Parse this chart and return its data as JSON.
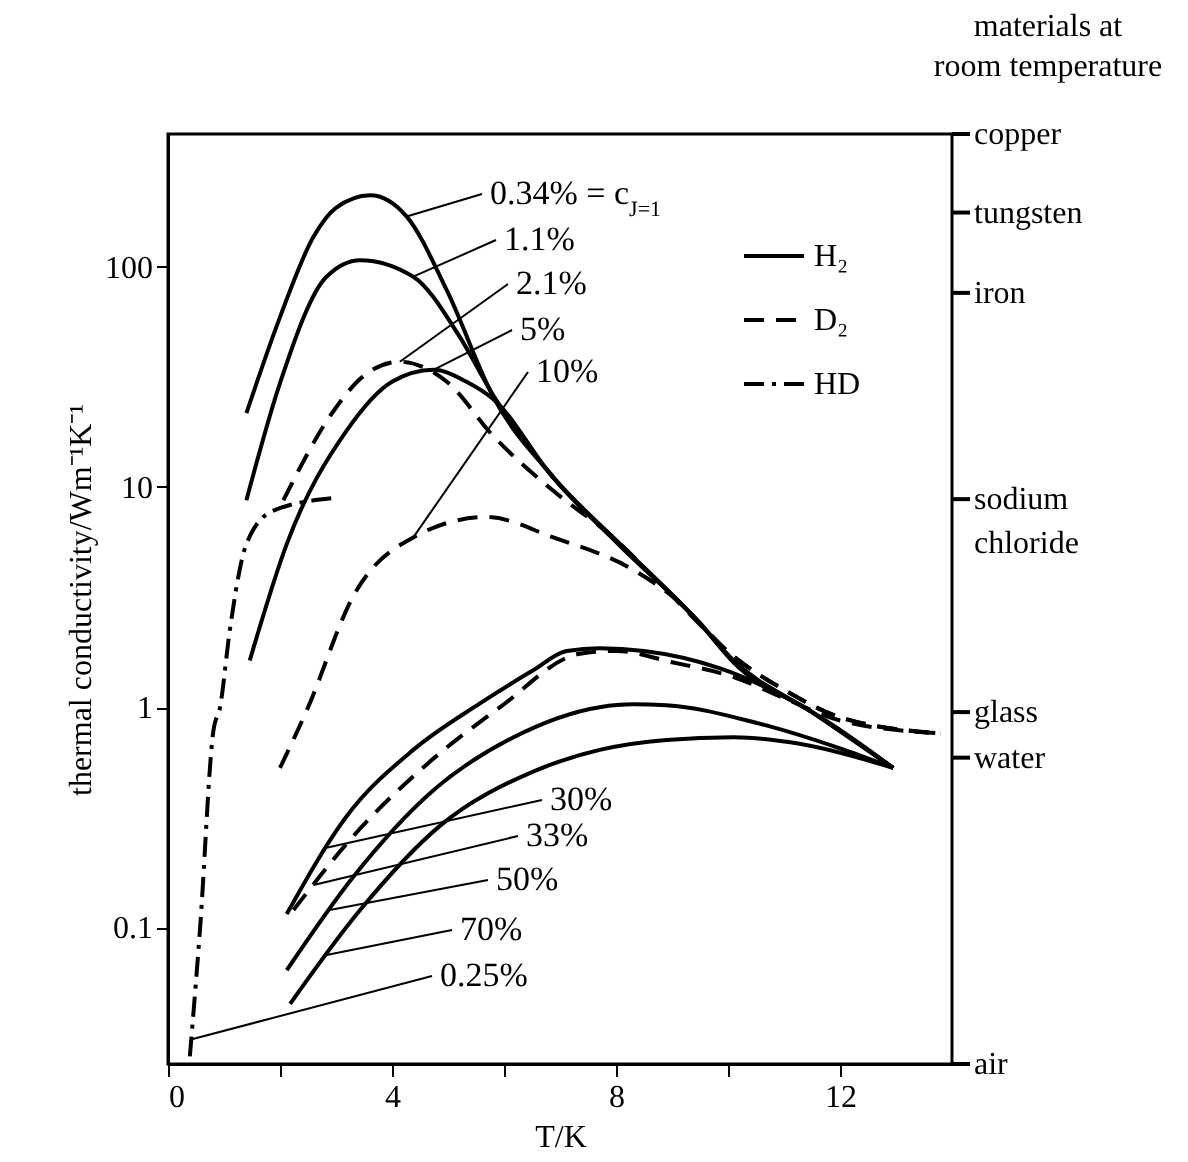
{
  "chart_data": {
    "type": "line",
    "xlabel": "T/K",
    "ylabel": "thermal conductivity/Wm⁻¹K⁻¹",
    "log": "y",
    "xlim": [
      0,
      14
    ],
    "xticks": [
      0,
      {
        "value": 2,
        "label": null
      },
      4,
      {
        "value": 6,
        "label": null
      },
      8,
      {
        "value": 10,
        "label": null
      },
      12
    ],
    "ylim": [
      0.024,
      400
    ],
    "yticks": [
      0.1,
      1,
      10,
      100
    ],
    "grid": false,
    "legend": "top right",
    "series": [
      {
        "name": "H₂",
        "color": "#000000",
        "line_style": "solid",
        "x": [
          1.4,
          2.0,
          2.6,
          3.0,
          3.61,
          4.26,
          4.98,
          5.81,
          6.88,
          8.07,
          9.5,
          10.1,
          11.5,
          12.95
        ],
        "values": [
          21.6,
          59,
          137,
          185,
          211,
          169,
          78,
          25.6,
          11.1,
          5.5,
          2.4,
          1.63,
          0.95,
          0.53
        ]
      },
      {
        "color": "#000000",
        "line_style": "solid",
        "x": [
          1.4,
          2.0,
          2.83,
          3.43,
          4.38,
          5.21,
          5.81,
          6.88,
          8.07,
          9.5,
          10.1,
          11.5,
          12.95
        ],
        "values": [
          8.7,
          29.6,
          90,
          107,
          90,
          48,
          26,
          11,
          5.5,
          2.4,
          1.6,
          0.95,
          0.53
        ]
      },
      {
        "color": "#000000",
        "line_style": "solid",
        "x": [
          1.46,
          2.12,
          3.19,
          4.0,
          4.74,
          5.33,
          5.81,
          6.88,
          8.07,
          9.5,
          10.1,
          11.5,
          12.95
        ],
        "values": [
          1.63,
          5.5,
          18,
          30,
          34,
          30,
          25,
          11,
          5.4,
          2.4,
          1.6,
          0.95,
          0.53
        ]
      },
      {
        "color": "#000000",
        "line_style": "solid",
        "x": [
          2.12,
          3.19,
          4.38,
          5.57,
          6.52,
          7.12,
          7.71,
          8.5,
          9.86,
          11.5,
          12.95
        ],
        "values": [
          0.115,
          0.32,
          0.64,
          1.04,
          1.47,
          1.8,
          1.85,
          1.8,
          1.5,
          0.95,
          0.53
        ]
      },
      {
        "color": "#000000",
        "line_style": "solid",
        "x": [
          2.12,
          3.31,
          4.74,
          6.17,
          7.71,
          8.3,
          8.9,
          10.5,
          12.0,
          12.95
        ],
        "values": [
          0.064,
          0.17,
          0.42,
          0.73,
          1.0,
          1.03,
          1.02,
          0.85,
          0.65,
          0.53
        ]
      },
      {
        "color": "#000000",
        "line_style": "solid",
        "x": [
          2.18,
          3.43,
          4.86,
          6.52,
          7.71,
          8.9,
          10.1,
          11.3,
          12.95
        ],
        "values": [
          0.045,
          0.12,
          0.29,
          0.51,
          0.64,
          0.71,
          0.73,
          0.68,
          0.53
        ]
      },
      {
        "name": "D₂",
        "color": "#000000",
        "line_style": "dashed",
        "x": [
          2.06,
          2.95,
          3.5,
          4.14,
          4.98,
          5.81,
          6.88,
          7.95,
          9.0,
          10.1,
          11.0,
          12.0,
          13.8
        ],
        "values": [
          8.7,
          22,
          32,
          37,
          30,
          17,
          9.6,
          5.9,
          3.2,
          1.7,
          1.2,
          0.9,
          0.76
        ]
      },
      {
        "color": "#000000",
        "line_style": "dashed",
        "x": [
          2.0,
          2.48,
          3.31,
          4.38,
          5.69,
          6.88,
          8.31,
          9.0,
          10.1,
          11.0,
          12.0,
          13.8
        ],
        "values": [
          0.53,
          0.97,
          3.2,
          5.9,
          7.3,
          5.9,
          4.2,
          3.2,
          1.7,
          1.2,
          0.9,
          0.76
        ]
      },
      {
        "color": "#000000",
        "line_style": "dashed",
        "x": [
          2.24,
          3.31,
          4.62,
          5.93,
          7.36,
          8.0,
          9.0,
          10.1,
          11.0,
          12.0,
          13.8
        ],
        "values": [
          0.12,
          0.26,
          0.55,
          1.0,
          1.75,
          1.8,
          1.6,
          1.37,
          1.1,
          0.87,
          0.76
        ]
      },
      {
        "name": "HD",
        "color": "#000000",
        "line_style": "dotted",
        "x": [
          0.39,
          0.57,
          0.81,
          0.93,
          1.1,
          1.4,
          1.88,
          2.95
        ],
        "values": [
          0.026,
          0.097,
          0.78,
          1.0,
          2.2,
          5.5,
          7.8,
          8.9
        ]
      }
    ],
    "ref_lines": [
      {
        "axis": "y",
        "value": 400,
        "label": "copper"
      },
      {
        "axis": "y",
        "value": 176,
        "label": "tungsten"
      },
      {
        "axis": "y",
        "value": 76,
        "label": "iron"
      },
      {
        "axis": "y",
        "value": 8.8,
        "label": "sodium chloride"
      },
      {
        "axis": "y",
        "value": 0.95,
        "label": "glass"
      },
      {
        "axis": "y",
        "value": 0.59,
        "label": "water"
      },
      {
        "axis": "y",
        "value": 0.024,
        "label": "air"
      }
    ],
    "annotations": [
      {
        "text": "0.34% = c$_{J=1}$",
        "x": 4.26,
        "y": 169
      },
      {
        "text": "1.1%",
        "x": 4.38,
        "y": 90
      },
      {
        "text": "2.1%",
        "x": 4.14,
        "y": 37
      },
      {
        "text": "5%",
        "x": 4.74,
        "y": 34
      },
      {
        "text": "10%",
        "x": 4.38,
        "y": 5.9
      },
      {
        "text": "30%",
        "x": 2.83,
        "y": 0.23
      },
      {
        "text": "33%",
        "x": 2.6,
        "y": 0.156
      },
      {
        "text": "50%",
        "x": 2.89,
        "y": 0.12
      },
      {
        "text": "70%",
        "x": 2.83,
        "y": 0.075
      },
      {
        "text": "0.25%",
        "x": 0.41,
        "y": 0.031
      },
      "materials at room temperature"
    ]
  }
}
